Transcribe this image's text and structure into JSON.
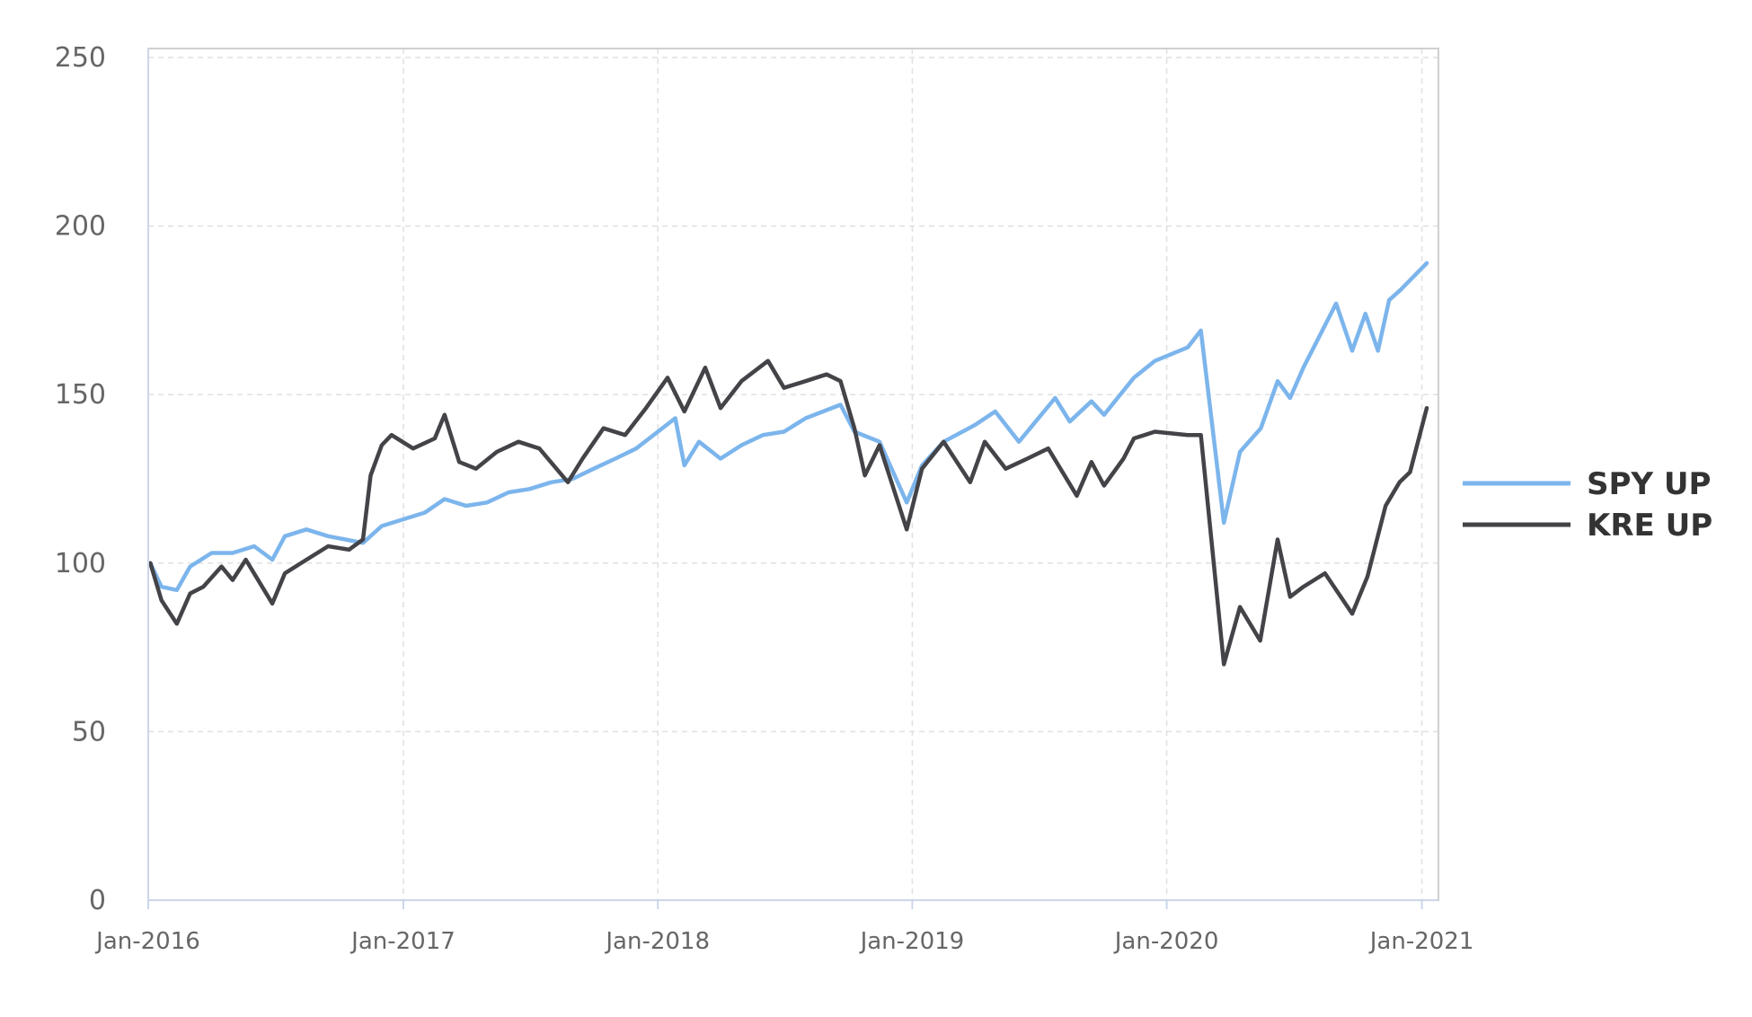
{
  "chart_data": {
    "type": "line",
    "title": "",
    "xlabel": "",
    "ylabel": "",
    "ylim": [
      0,
      250
    ],
    "y_ticks": [
      0,
      50,
      100,
      150,
      200,
      250
    ],
    "x_range": [
      "2016-01-04",
      "2021-01-08"
    ],
    "x_ticks": [
      {
        "date": "2016-01-01",
        "label": "Jan-2016"
      },
      {
        "date": "2017-01-01",
        "label": "Jan-2017"
      },
      {
        "date": "2018-01-01",
        "label": "Jan-2018"
      },
      {
        "date": "2019-01-01",
        "label": "Jan-2019"
      },
      {
        "date": "2020-01-01",
        "label": "Jan-2020"
      },
      {
        "date": "2021-01-01",
        "label": "Jan-2021"
      }
    ],
    "grid": true,
    "legend_position": "right",
    "series": [
      {
        "name": "SPY UP",
        "color": "#7cb5ec",
        "points": [
          [
            "2016-01-04",
            100
          ],
          [
            "2016-01-20",
            93
          ],
          [
            "2016-02-11",
            92
          ],
          [
            "2016-03-01",
            99
          ],
          [
            "2016-04-01",
            103
          ],
          [
            "2016-05-01",
            103
          ],
          [
            "2016-06-01",
            105
          ],
          [
            "2016-06-27",
            101
          ],
          [
            "2016-07-15",
            108
          ],
          [
            "2016-08-15",
            110
          ],
          [
            "2016-09-15",
            108
          ],
          [
            "2016-11-04",
            106
          ],
          [
            "2016-12-01",
            111
          ],
          [
            "2017-01-01",
            113
          ],
          [
            "2017-02-01",
            115
          ],
          [
            "2017-03-01",
            119
          ],
          [
            "2017-04-01",
            117
          ],
          [
            "2017-05-01",
            118
          ],
          [
            "2017-06-01",
            121
          ],
          [
            "2017-07-01",
            122
          ],
          [
            "2017-08-01",
            124
          ],
          [
            "2017-09-01",
            125
          ],
          [
            "2017-10-01",
            128
          ],
          [
            "2017-11-01",
            131
          ],
          [
            "2017-12-01",
            134
          ],
          [
            "2018-01-26",
            143
          ],
          [
            "2018-02-08",
            129
          ],
          [
            "2018-03-01",
            136
          ],
          [
            "2018-04-01",
            131
          ],
          [
            "2018-05-01",
            135
          ],
          [
            "2018-06-01",
            138
          ],
          [
            "2018-07-01",
            139
          ],
          [
            "2018-08-01",
            143
          ],
          [
            "2018-09-20",
            147
          ],
          [
            "2018-10-10",
            139
          ],
          [
            "2018-11-15",
            136
          ],
          [
            "2018-12-24",
            118
          ],
          [
            "2019-01-15",
            129
          ],
          [
            "2019-02-15",
            136
          ],
          [
            "2019-04-01",
            141
          ],
          [
            "2019-04-30",
            145
          ],
          [
            "2019-06-03",
            136
          ],
          [
            "2019-07-25",
            149
          ],
          [
            "2019-08-15",
            142
          ],
          [
            "2019-09-15",
            148
          ],
          [
            "2019-10-03",
            144
          ],
          [
            "2019-11-15",
            155
          ],
          [
            "2019-12-15",
            160
          ],
          [
            "2020-01-31",
            164
          ],
          [
            "2020-02-19",
            169
          ],
          [
            "2020-03-23",
            112
          ],
          [
            "2020-04-15",
            133
          ],
          [
            "2020-05-15",
            140
          ],
          [
            "2020-06-08",
            154
          ],
          [
            "2020-06-26",
            149
          ],
          [
            "2020-07-15",
            158
          ],
          [
            "2020-08-31",
            177
          ],
          [
            "2020-09-23",
            163
          ],
          [
            "2020-10-12",
            174
          ],
          [
            "2020-10-30",
            163
          ],
          [
            "2020-11-15",
            178
          ],
          [
            "2020-12-01",
            181
          ],
          [
            "2021-01-08",
            189
          ]
        ]
      },
      {
        "name": "KRE UP",
        "color": "#434348",
        "points": [
          [
            "2016-01-04",
            100
          ],
          [
            "2016-01-20",
            89
          ],
          [
            "2016-02-11",
            82
          ],
          [
            "2016-03-01",
            91
          ],
          [
            "2016-03-20",
            93
          ],
          [
            "2016-04-15",
            99
          ],
          [
            "2016-05-01",
            95
          ],
          [
            "2016-05-20",
            101
          ],
          [
            "2016-06-27",
            88
          ],
          [
            "2016-07-15",
            97
          ],
          [
            "2016-08-15",
            101
          ],
          [
            "2016-09-15",
            105
          ],
          [
            "2016-10-15",
            104
          ],
          [
            "2016-11-04",
            107
          ],
          [
            "2016-11-15",
            126
          ],
          [
            "2016-12-01",
            135
          ],
          [
            "2016-12-15",
            138
          ],
          [
            "2017-01-15",
            134
          ],
          [
            "2017-02-15",
            137
          ],
          [
            "2017-03-01",
            144
          ],
          [
            "2017-03-22",
            130
          ],
          [
            "2017-04-15",
            128
          ],
          [
            "2017-05-15",
            133
          ],
          [
            "2017-06-15",
            136
          ],
          [
            "2017-07-15",
            134
          ],
          [
            "2017-08-25",
            124
          ],
          [
            "2017-09-15",
            131
          ],
          [
            "2017-10-15",
            140
          ],
          [
            "2017-11-15",
            138
          ],
          [
            "2017-12-15",
            146
          ],
          [
            "2018-01-15",
            155
          ],
          [
            "2018-02-08",
            145
          ],
          [
            "2018-03-10",
            158
          ],
          [
            "2018-04-01",
            146
          ],
          [
            "2018-05-01",
            154
          ],
          [
            "2018-06-08",
            160
          ],
          [
            "2018-07-01",
            152
          ],
          [
            "2018-08-01",
            154
          ],
          [
            "2018-08-31",
            156
          ],
          [
            "2018-09-20",
            154
          ],
          [
            "2018-10-10",
            140
          ],
          [
            "2018-10-25",
            126
          ],
          [
            "2018-11-15",
            135
          ],
          [
            "2018-12-24",
            110
          ],
          [
            "2019-01-15",
            128
          ],
          [
            "2019-02-15",
            136
          ],
          [
            "2019-03-25",
            124
          ],
          [
            "2019-04-15",
            136
          ],
          [
            "2019-05-15",
            128
          ],
          [
            "2019-06-15",
            131
          ],
          [
            "2019-07-15",
            134
          ],
          [
            "2019-08-25",
            120
          ],
          [
            "2019-09-15",
            130
          ],
          [
            "2019-10-03",
            123
          ],
          [
            "2019-10-31",
            131
          ],
          [
            "2019-11-15",
            137
          ],
          [
            "2019-12-15",
            139
          ],
          [
            "2020-01-31",
            138
          ],
          [
            "2020-02-19",
            138
          ],
          [
            "2020-03-23",
            70
          ],
          [
            "2020-04-15",
            87
          ],
          [
            "2020-05-14",
            77
          ],
          [
            "2020-06-08",
            107
          ],
          [
            "2020-06-26",
            90
          ],
          [
            "2020-07-15",
            93
          ],
          [
            "2020-08-15",
            97
          ],
          [
            "2020-09-23",
            85
          ],
          [
            "2020-10-15",
            96
          ],
          [
            "2020-11-10",
            117
          ],
          [
            "2020-11-30",
            124
          ],
          [
            "2020-12-15",
            127
          ],
          [
            "2021-01-08",
            146
          ]
        ]
      }
    ]
  }
}
